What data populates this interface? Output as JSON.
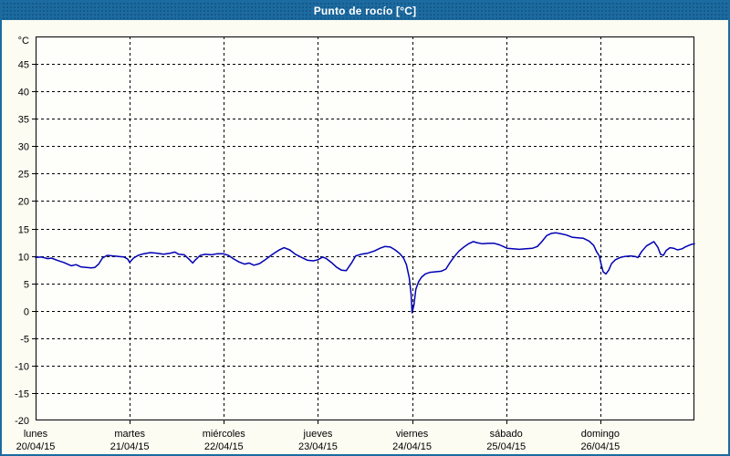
{
  "header": {
    "title": "Punto de rocío [°C]"
  },
  "colors": {
    "titlebar_bg": "#1C6BA0",
    "titlebar_text": "#FFFFFF",
    "canvas_bg": "#FCFCF2",
    "plot_bg": "#FEFEFB",
    "axis": "#000000",
    "grid": "#000000",
    "line": "#0000B4",
    "label_text": "#000000"
  },
  "chart_data": {
    "type": "line",
    "title": "Punto de rocío [°C]",
    "ylabel": "°C",
    "ylim": [
      -20,
      50
    ],
    "yticks": [
      45,
      40,
      35,
      30,
      25,
      20,
      15,
      10,
      5,
      0,
      -5,
      -10,
      -15,
      -20
    ],
    "grid": "dashed",
    "legend_position": "none",
    "x_axis": {
      "unit": "days",
      "days": [
        {
          "name": "lunes",
          "date": "20/04/15"
        },
        {
          "name": "martes",
          "date": "21/04/15"
        },
        {
          "name": "miércoles",
          "date": "22/04/15"
        },
        {
          "name": "jueves",
          "date": "23/04/15"
        },
        {
          "name": "viernes",
          "date": "24/04/15"
        },
        {
          "name": "sábado",
          "date": "25/04/15"
        },
        {
          "name": "domingo",
          "date": "26/04/15"
        }
      ]
    },
    "series": [
      {
        "name": "Punto de rocío",
        "color": "#0000B4",
        "points": [
          [
            0.0,
            9.7
          ],
          [
            0.06,
            9.8
          ],
          [
            0.13,
            9.5
          ],
          [
            0.17,
            9.6
          ],
          [
            0.23,
            9.2
          ],
          [
            0.3,
            8.8
          ],
          [
            0.38,
            8.2
          ],
          [
            0.43,
            8.4
          ],
          [
            0.48,
            8.0
          ],
          [
            0.54,
            7.9
          ],
          [
            0.59,
            7.8
          ],
          [
            0.63,
            7.9
          ],
          [
            0.67,
            8.5
          ],
          [
            0.71,
            9.6
          ],
          [
            0.76,
            10.1
          ],
          [
            0.82,
            10.0
          ],
          [
            0.88,
            9.9
          ],
          [
            0.94,
            9.8
          ],
          [
            0.98,
            9.4
          ],
          [
            1.0,
            8.8
          ],
          [
            1.04,
            9.6
          ],
          [
            1.09,
            10.1
          ],
          [
            1.15,
            10.4
          ],
          [
            1.22,
            10.6
          ],
          [
            1.29,
            10.5
          ],
          [
            1.36,
            10.3
          ],
          [
            1.43,
            10.5
          ],
          [
            1.48,
            10.7
          ],
          [
            1.52,
            10.3
          ],
          [
            1.58,
            10.2
          ],
          [
            1.63,
            9.4
          ],
          [
            1.67,
            8.7
          ],
          [
            1.7,
            9.3
          ],
          [
            1.75,
            10.1
          ],
          [
            1.8,
            10.3
          ],
          [
            1.87,
            10.2
          ],
          [
            1.93,
            10.4
          ],
          [
            1.99,
            10.4
          ],
          [
            2.05,
            10.1
          ],
          [
            2.1,
            9.5
          ],
          [
            2.16,
            8.9
          ],
          [
            2.22,
            8.5
          ],
          [
            2.27,
            8.7
          ],
          [
            2.32,
            8.3
          ],
          [
            2.38,
            8.6
          ],
          [
            2.44,
            9.3
          ],
          [
            2.51,
            10.2
          ],
          [
            2.58,
            11.0
          ],
          [
            2.64,
            11.5
          ],
          [
            2.7,
            11.1
          ],
          [
            2.76,
            10.3
          ],
          [
            2.83,
            9.7
          ],
          [
            2.89,
            9.2
          ],
          [
            2.95,
            9.1
          ],
          [
            3.0,
            9.3
          ],
          [
            3.05,
            9.8
          ],
          [
            3.09,
            9.5
          ],
          [
            3.15,
            8.7
          ],
          [
            3.2,
            7.9
          ],
          [
            3.25,
            7.4
          ],
          [
            3.3,
            7.3
          ],
          [
            3.36,
            8.8
          ],
          [
            3.4,
            10.0
          ],
          [
            3.46,
            10.3
          ],
          [
            3.53,
            10.5
          ],
          [
            3.6,
            10.9
          ],
          [
            3.66,
            11.4
          ],
          [
            3.71,
            11.7
          ],
          [
            3.77,
            11.6
          ],
          [
            3.82,
            11.1
          ],
          [
            3.87,
            10.4
          ],
          [
            3.91,
            9.6
          ],
          [
            3.94,
            8.4
          ],
          [
            3.97,
            6.0
          ],
          [
            3.99,
            3.0
          ],
          [
            4.0,
            -0.4
          ],
          [
            4.02,
            1.0
          ],
          [
            4.04,
            3.9
          ],
          [
            4.07,
            5.3
          ],
          [
            4.1,
            6.1
          ],
          [
            4.14,
            6.7
          ],
          [
            4.19,
            7.0
          ],
          [
            4.25,
            7.1
          ],
          [
            4.31,
            7.2
          ],
          [
            4.36,
            7.6
          ],
          [
            4.4,
            8.7
          ],
          [
            4.45,
            9.9
          ],
          [
            4.5,
            10.9
          ],
          [
            4.55,
            11.6
          ],
          [
            4.6,
            12.2
          ],
          [
            4.65,
            12.6
          ],
          [
            4.69,
            12.4
          ],
          [
            4.75,
            12.2
          ],
          [
            4.81,
            12.3
          ],
          [
            4.87,
            12.3
          ],
          [
            4.93,
            12.0
          ],
          [
            4.97,
            11.7
          ],
          [
            5.01,
            11.4
          ],
          [
            5.07,
            11.3
          ],
          [
            5.14,
            11.2
          ],
          [
            5.21,
            11.3
          ],
          [
            5.28,
            11.4
          ],
          [
            5.33,
            11.7
          ],
          [
            5.38,
            12.6
          ],
          [
            5.43,
            13.7
          ],
          [
            5.48,
            14.1
          ],
          [
            5.53,
            14.2
          ],
          [
            5.59,
            14.0
          ],
          [
            5.64,
            13.8
          ],
          [
            5.7,
            13.4
          ],
          [
            5.76,
            13.3
          ],
          [
            5.82,
            13.2
          ],
          [
            5.88,
            12.7
          ],
          [
            5.93,
            11.9
          ],
          [
            5.96,
            10.8
          ],
          [
            5.99,
            10.0
          ],
          [
            6.01,
            8.4
          ],
          [
            6.03,
            7.1
          ],
          [
            6.06,
            6.7
          ],
          [
            6.09,
            7.4
          ],
          [
            6.12,
            8.6
          ],
          [
            6.16,
            9.3
          ],
          [
            6.21,
            9.7
          ],
          [
            6.26,
            9.9
          ],
          [
            6.32,
            10.0
          ],
          [
            6.37,
            9.9
          ],
          [
            6.4,
            9.7
          ],
          [
            6.44,
            10.8
          ],
          [
            6.49,
            11.8
          ],
          [
            6.54,
            12.3
          ],
          [
            6.57,
            12.6
          ],
          [
            6.61,
            11.6
          ],
          [
            6.64,
            10.3
          ],
          [
            6.67,
            10.1
          ],
          [
            6.7,
            11.0
          ],
          [
            6.74,
            11.5
          ],
          [
            6.78,
            11.4
          ],
          [
            6.82,
            11.1
          ],
          [
            6.87,
            11.3
          ],
          [
            6.9,
            11.6
          ],
          [
            6.94,
            11.9
          ],
          [
            6.97,
            12.1
          ],
          [
            7.0,
            12.2
          ]
        ]
      }
    ]
  }
}
